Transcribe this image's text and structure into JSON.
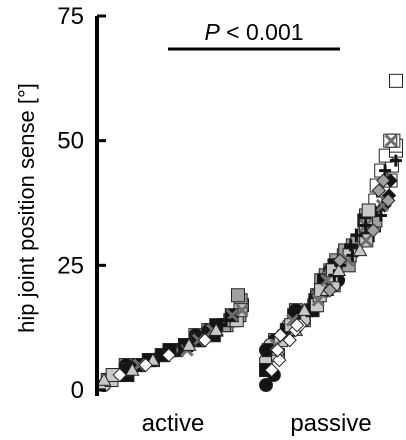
{
  "chart_data": {
    "type": "scatter",
    "ylabel": "hip joint position sense [°]",
    "ylim": [
      0,
      75
    ],
    "yticks": [
      0,
      25,
      50,
      75
    ],
    "categories": [
      "active",
      "passive"
    ],
    "annotation": {
      "p_symbol": "P",
      "p_rest": " < 0.001"
    },
    "colors": {
      "axis": "#000000",
      "white": "#ffffff",
      "light_gray": "#c8c8c8",
      "mid_gray": "#a0a0a0",
      "dark_gray": "#6e6e6e",
      "black": "#141414"
    },
    "series": [
      {
        "category": "active",
        "shape": "square",
        "fill": "mid_gray",
        "values": [
          2,
          4,
          6,
          8,
          10,
          12,
          13,
          14,
          12,
          15,
          14,
          13,
          12,
          17,
          18,
          19,
          5,
          7,
          9,
          11
        ]
      },
      {
        "category": "active",
        "shape": "circle",
        "fill": "black",
        "values": [
          1,
          3,
          3,
          5,
          6,
          7,
          8,
          6,
          9,
          8,
          10,
          11,
          9,
          12,
          8,
          10,
          7,
          5,
          4
        ]
      },
      {
        "category": "active",
        "shape": "circle",
        "fill": "light_gray",
        "values": [
          1,
          2,
          3,
          4,
          5,
          5,
          6,
          7,
          8,
          9,
          10,
          11,
          6,
          4,
          3,
          8
        ]
      },
      {
        "category": "active",
        "shape": "square",
        "fill": "light_gray",
        "values": [
          2,
          3,
          4,
          6,
          8,
          9,
          10,
          12,
          14,
          16,
          11,
          7,
          5,
          3
        ]
      },
      {
        "category": "active",
        "shape": "square",
        "fill": "black",
        "values": [
          3,
          4,
          5,
          7,
          9,
          10,
          11,
          13,
          15,
          12,
          8,
          6
        ]
      },
      {
        "category": "active",
        "shape": "cross",
        "fill": "dark_gray",
        "values": [
          5,
          8,
          10,
          12,
          15,
          16
        ]
      },
      {
        "category": "active",
        "shape": "plus",
        "fill": "black",
        "values": [
          6,
          7,
          9,
          11,
          14,
          13
        ]
      },
      {
        "category": "active",
        "shape": "triangle",
        "fill": "light_gray",
        "values": [
          2,
          4,
          6,
          9,
          12
        ]
      },
      {
        "category": "active",
        "shape": "diamond",
        "fill": "white",
        "values": [
          3,
          5,
          7,
          10
        ]
      },
      {
        "category": "passive",
        "shape": "square",
        "fill": "white",
        "values": [
          38,
          40,
          41,
          42,
          44,
          45,
          47,
          48,
          49,
          50,
          50,
          62
        ]
      },
      {
        "category": "passive",
        "shape": "diamond",
        "fill": "black",
        "values": [
          16,
          18,
          22,
          28,
          30,
          31,
          32,
          33,
          34,
          35,
          36,
          37,
          39,
          42
        ]
      },
      {
        "category": "passive",
        "shape": "square",
        "fill": "mid_gray",
        "values": [
          10,
          14,
          17,
          20,
          22,
          24,
          26,
          28,
          30,
          32,
          33,
          34,
          35,
          30,
          27,
          25,
          21,
          18,
          16,
          12,
          19,
          23,
          29,
          31
        ]
      },
      {
        "category": "passive",
        "shape": "circle",
        "fill": "black",
        "values": [
          1,
          3,
          5,
          8,
          10,
          12,
          14,
          16,
          18,
          20,
          22,
          24,
          19,
          15,
          11,
          9,
          7,
          13,
          17,
          21
        ]
      },
      {
        "category": "passive",
        "shape": "circle",
        "fill": "light_gray",
        "values": [
          6,
          9,
          11,
          13,
          15,
          17,
          19,
          21,
          23,
          25,
          18,
          14,
          12,
          16,
          20
        ]
      },
      {
        "category": "passive",
        "shape": "square",
        "fill": "black",
        "values": [
          4,
          8,
          12,
          15,
          18,
          22,
          25,
          28,
          31,
          34,
          27,
          24,
          20,
          16
        ]
      },
      {
        "category": "passive",
        "shape": "square",
        "fill": "light_gray",
        "values": [
          7,
          10,
          13,
          17,
          20,
          24,
          27,
          30,
          33,
          36,
          23,
          19
        ]
      },
      {
        "category": "passive",
        "shape": "cross",
        "fill": "dark_gray",
        "values": [
          9,
          14,
          18,
          22,
          26,
          30,
          33,
          37,
          50
        ]
      },
      {
        "category": "passive",
        "shape": "plus",
        "fill": "black",
        "values": [
          23,
          25,
          27,
          29,
          31,
          33,
          35,
          44,
          46
        ]
      },
      {
        "category": "passive",
        "shape": "triangle",
        "fill": "light_gray",
        "values": [
          8,
          12,
          16,
          20,
          24,
          28
        ]
      },
      {
        "category": "passive",
        "shape": "diamond",
        "fill": "white",
        "values": [
          4,
          6,
          8,
          10,
          11,
          12,
          13,
          13
        ]
      },
      {
        "category": "passive",
        "shape": "diamond",
        "fill": "mid_gray",
        "values": [
          20,
          26,
          32,
          38,
          40,
          42
        ]
      }
    ]
  }
}
